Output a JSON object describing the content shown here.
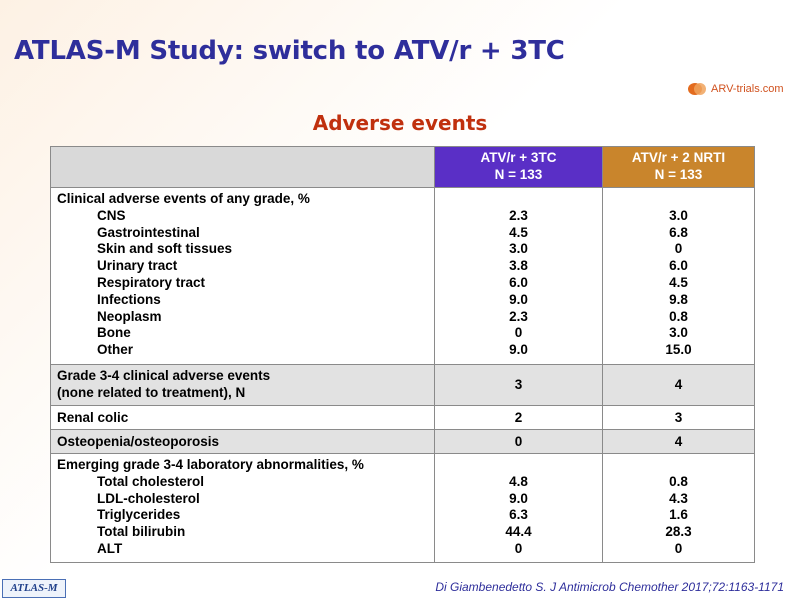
{
  "title": "ATLAS-M Study: switch to ATV/r + 3TC",
  "logo": {
    "text": "ARV-trials.com"
  },
  "subtitle": "Adverse events",
  "table": {
    "header": {
      "col2": [
        "ATV/r + 3TC",
        "N = 133"
      ],
      "col3": [
        "ATV/r + 2 NRTI",
        "N = 133"
      ]
    },
    "rows": [
      {
        "section": "Clinical adverse events of any grade, %",
        "items": [
          "CNS",
          "Gastrointestinal",
          "Skin and soft tissues",
          "Urinary tract",
          "Respiratory tract",
          "Infections",
          "Neoplasm",
          "Bone",
          "Other"
        ],
        "col2": [
          "2.3",
          "4.5",
          "3.0",
          "3.8",
          "6.0",
          "9.0",
          "2.3",
          "0",
          "9.0"
        ],
        "col3": [
          "3.0",
          "6.8",
          "0",
          "6.0",
          "4.5",
          "9.8",
          "0.8",
          "3.0",
          "15.0"
        ]
      },
      {
        "label": [
          "Grade 3-4 clinical adverse events",
          "(none related to treatment), N"
        ],
        "col2": "3",
        "col3": "4"
      },
      {
        "label": "Renal colic",
        "col2": "2",
        "col3": "3"
      },
      {
        "label": "Osteopenia/osteoporosis",
        "col2": "0",
        "col3": "4"
      },
      {
        "section": "Emerging grade 3-4 laboratory abnormalities, %",
        "items": [
          "Total cholesterol",
          "LDL-cholesterol",
          "Triglycerides",
          "Total bilirubin",
          "ALT"
        ],
        "col2": [
          "4.8",
          "9.0",
          "6.3",
          "44.4",
          "0"
        ],
        "col3": [
          "0.8",
          "4.3",
          "1.6",
          "28.3",
          "0"
        ]
      }
    ]
  },
  "footer": {
    "badge": "ATLAS-M",
    "reference": "Di Giambenedetto S. J Antimicrob Chemother 2017;72:1163-1171"
  },
  "colors": {
    "title": "#2e2e9b",
    "subtitle": "#c0300e",
    "header_col2": "#5a2fc6",
    "header_col3": "#c9852c",
    "grey_row": "#e2e2e2"
  }
}
